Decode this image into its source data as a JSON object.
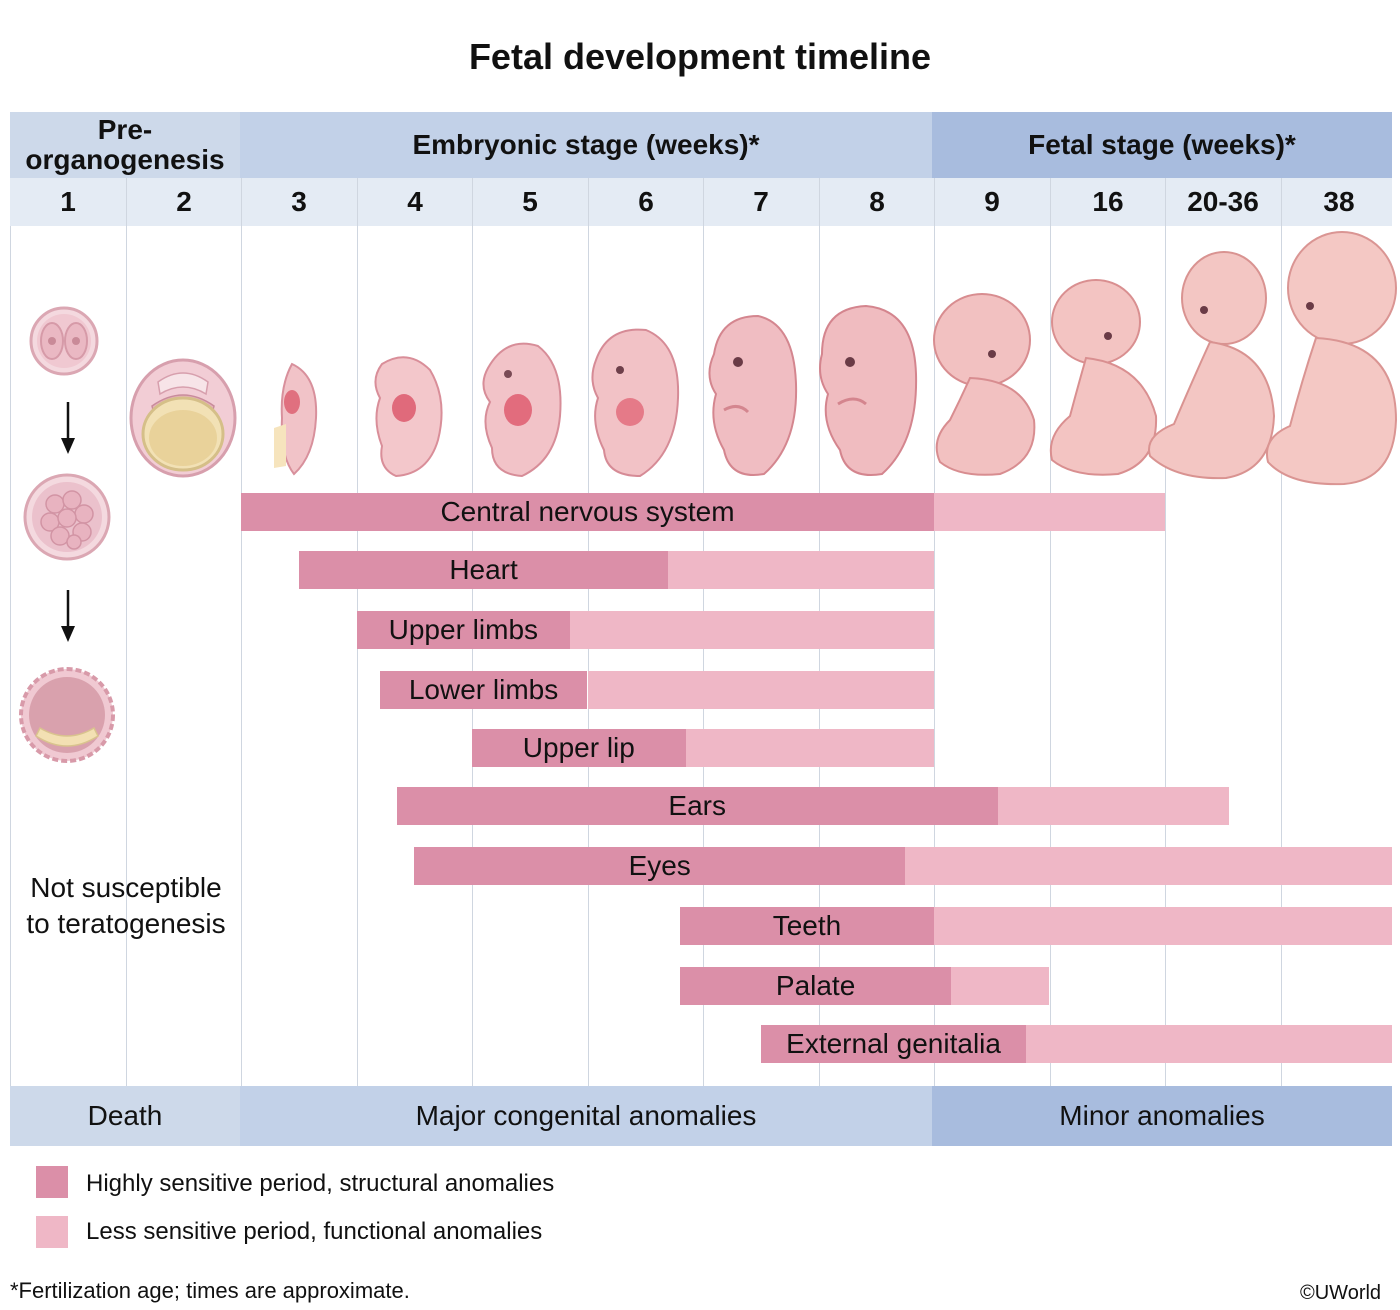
{
  "title": "Fetal development timeline",
  "colors": {
    "header_light": "#cdd9ea",
    "header_mid": "#c2d1e8",
    "header_dark": "#a8bcde",
    "week_row": "#e4ebf4",
    "highly_sensitive": "#db8fa8",
    "less_sensitive": "#efb7c6"
  },
  "headers": {
    "pre": "Pre-\norganogenesis",
    "embryonic": "Embryonic stage (weeks)*",
    "fetal": "Fetal stage (weeks)*"
  },
  "weeks": [
    "1",
    "2",
    "3",
    "4",
    "5",
    "6",
    "7",
    "8",
    "9",
    "16",
    "20-36",
    "38"
  ],
  "illustrations": [
    "two-cell-zygote-icon",
    "morula-icon",
    "blastocyst-icon",
    "bilaminar-disc-icon",
    "embryo-week-3-icon",
    "embryo-week-4-icon",
    "embryo-week-5-icon",
    "embryo-week-6-icon",
    "embryo-week-7-icon",
    "embryo-week-8-icon",
    "fetus-week-9-icon",
    "fetus-week-16-icon",
    "fetus-week-20-36-icon",
    "fetus-week-38-icon"
  ],
  "not_susceptible": "Not susceptible\nto teratogenesis",
  "organs": [
    {
      "name": "Central nervous system",
      "start": 3,
      "high_end": 9,
      "end": 11
    },
    {
      "name": "Heart",
      "start": 3.5,
      "high_end": 6.7,
      "end": 9
    },
    {
      "name": "Upper limbs",
      "start": 4,
      "high_end": 5.85,
      "end": 9
    },
    {
      "name": "Lower limbs",
      "start": 4.2,
      "high_end": 6,
      "end": 9
    },
    {
      "name": "Upper lip",
      "start": 5,
      "high_end": 6.85,
      "end": 9
    },
    {
      "name": "Ears",
      "start": 4.35,
      "high_end": 9.55,
      "end": 11.55
    },
    {
      "name": "Eyes",
      "start": 4.5,
      "high_end": 8.75,
      "end": 13
    },
    {
      "name": "Teeth",
      "start": 6.8,
      "high_end": 9,
      "end": 13
    },
    {
      "name": "Palate",
      "start": 6.8,
      "high_end": 9.15,
      "end": 10
    },
    {
      "name": "External genitalia",
      "start": 7.5,
      "high_end": 9.8,
      "end": 13
    }
  ],
  "footer": {
    "death": "Death",
    "major": "Major congenital anomalies",
    "minor": "Minor anomalies"
  },
  "legend": {
    "high": "Highly sensitive period, structural anomalies",
    "less": "Less sensitive period, functional anomalies"
  },
  "footnote": "*Fertilization age; times are approximate.",
  "copyright": "©UWorld"
}
